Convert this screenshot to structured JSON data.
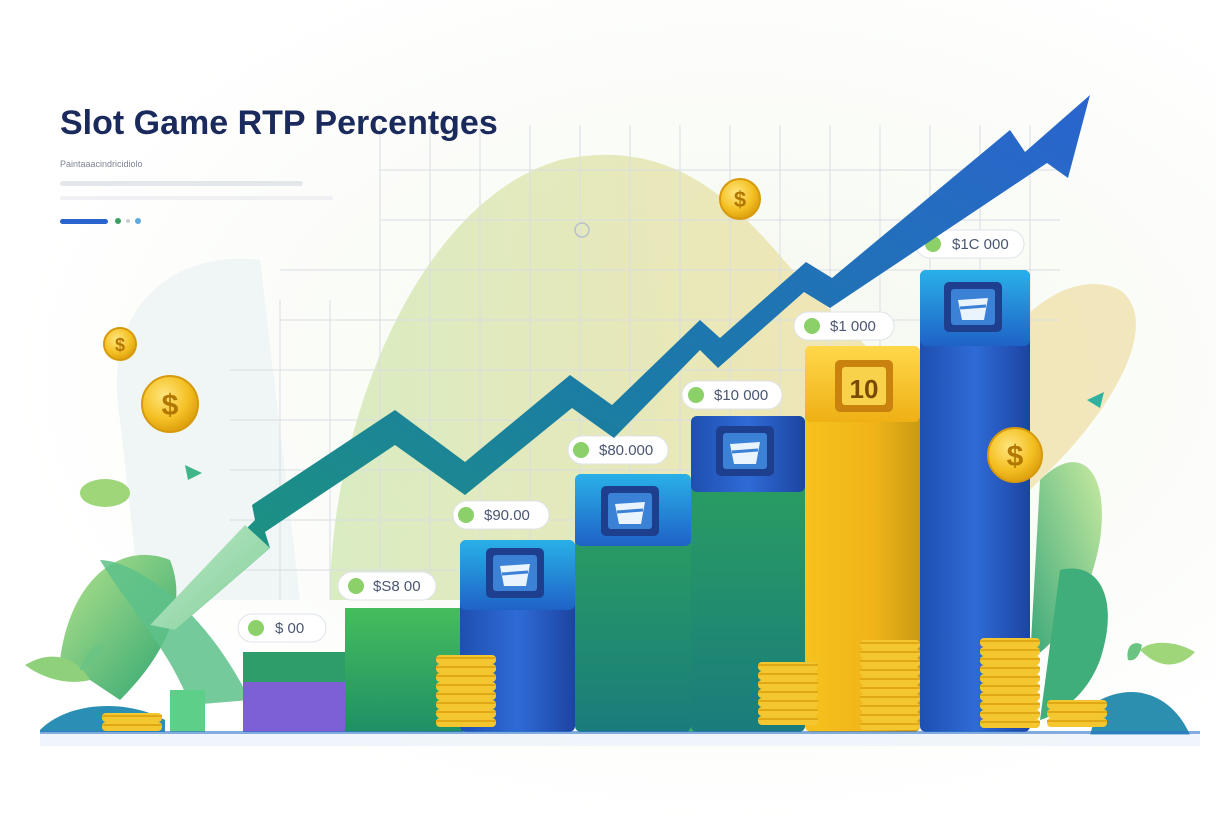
{
  "header": {
    "title": "Slot Game RTP Percentges",
    "subtitle": "Paintaaacindricidiolo"
  },
  "tags": [
    "$ 00",
    "$S8 00",
    "$90.00",
    "$80.000",
    "$10 000",
    "$1 000",
    "$1C 000"
  ],
  "bar_badge_value": "10",
  "colors": {
    "title": "#1b2a5c",
    "arrow_start": "#1a9a6e",
    "arrow_end": "#1f5fc4",
    "gold": "#f2c02a",
    "blue": "#2a55c0",
    "green": "#3aaa58"
  },
  "icons": [
    "dollar-coin-icon",
    "slot-window-icon",
    "leaf-icon",
    "trend-arrow-icon"
  ]
}
